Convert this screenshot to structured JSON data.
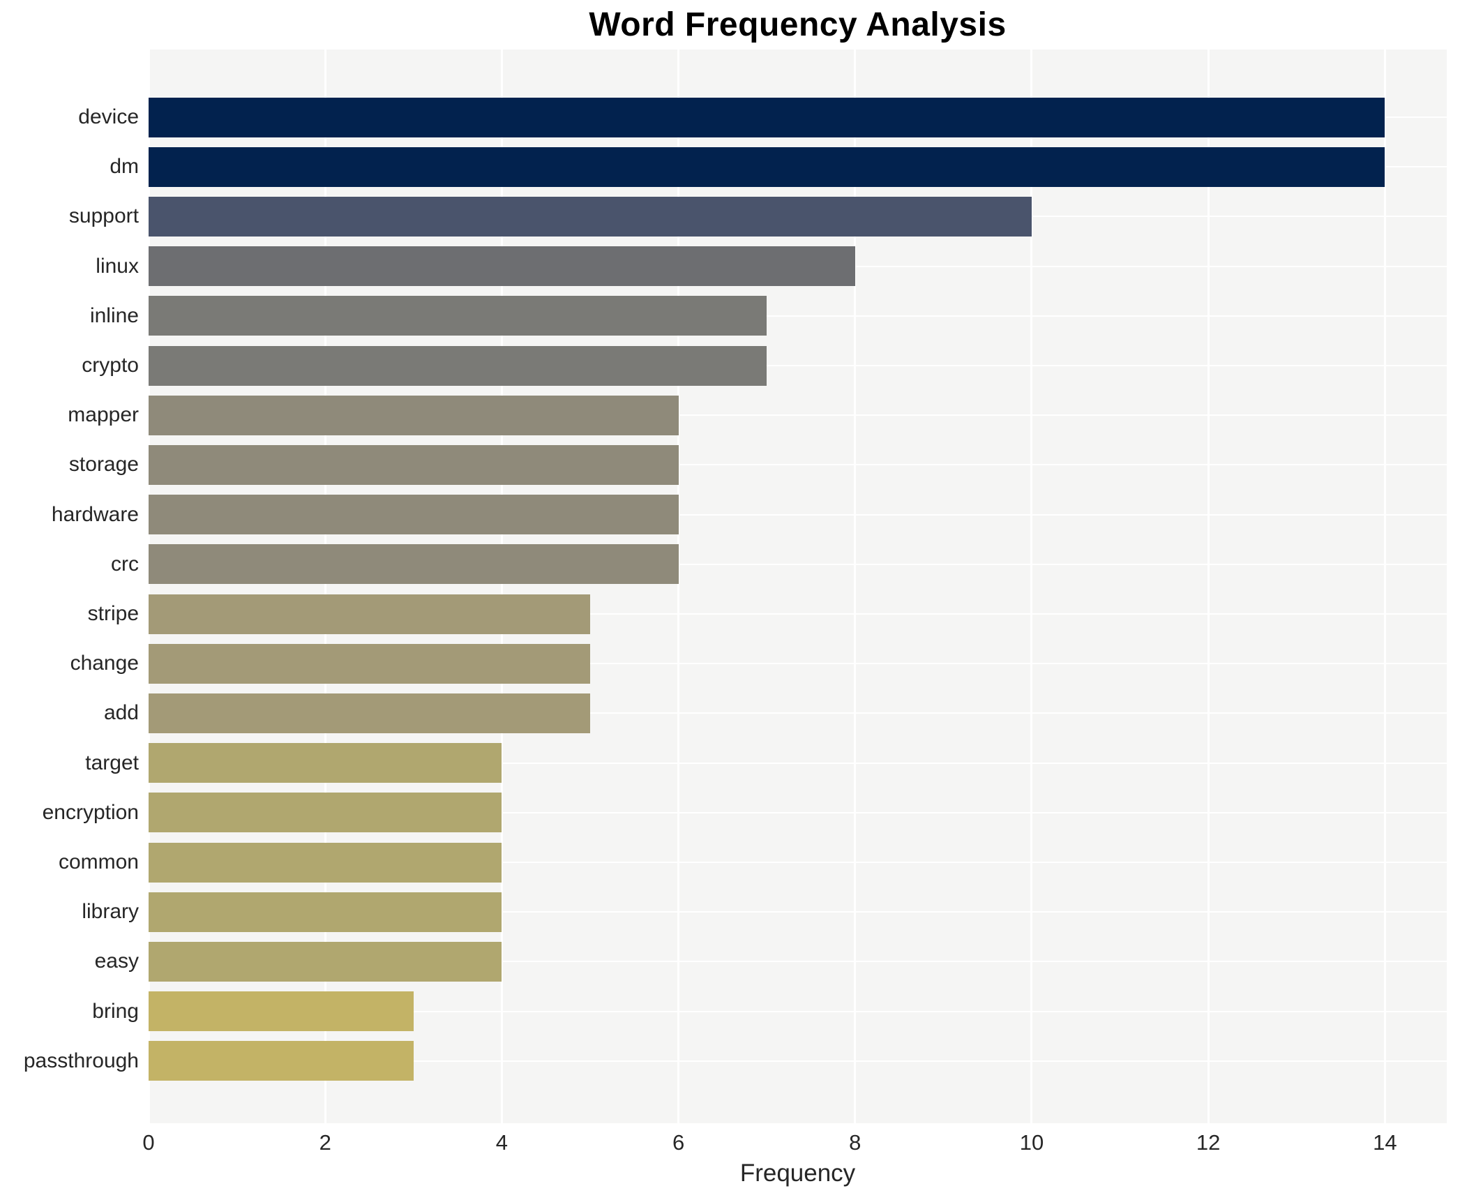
{
  "chart_data": {
    "type": "bar",
    "orientation": "horizontal",
    "title": "Word Frequency Analysis",
    "xlabel": "Frequency",
    "ylabel": "",
    "categories": [
      "device",
      "dm",
      "support",
      "linux",
      "inline",
      "crypto",
      "mapper",
      "storage",
      "hardware",
      "crc",
      "stripe",
      "change",
      "add",
      "target",
      "encryption",
      "common",
      "library",
      "easy",
      "bring",
      "passthrough"
    ],
    "values": [
      14,
      14,
      10,
      8,
      7,
      7,
      6,
      6,
      6,
      6,
      5,
      5,
      5,
      4,
      4,
      4,
      4,
      4,
      3,
      3
    ],
    "bar_colors": [
      "#02224e",
      "#02224e",
      "#4a546c",
      "#6d6e71",
      "#7a7a76",
      "#7a7a76",
      "#8f8a7a",
      "#8f8a7a",
      "#8f8a7a",
      "#8f8a7a",
      "#a39a77",
      "#a39a77",
      "#a39a77",
      "#b0a76f",
      "#b0a76f",
      "#b0a76f",
      "#b0a76f",
      "#b0a76f",
      "#c3b366",
      "#c3b366"
    ],
    "xticks": [
      0,
      2,
      4,
      6,
      8,
      10,
      12,
      14
    ],
    "xlim": [
      0,
      14.7
    ],
    "grid": true,
    "legend": false,
    "colors": {
      "plot_background": "#f5f5f4",
      "gridline": "#ffffff",
      "tick_text": "#262626",
      "title_text": "#000000"
    }
  }
}
